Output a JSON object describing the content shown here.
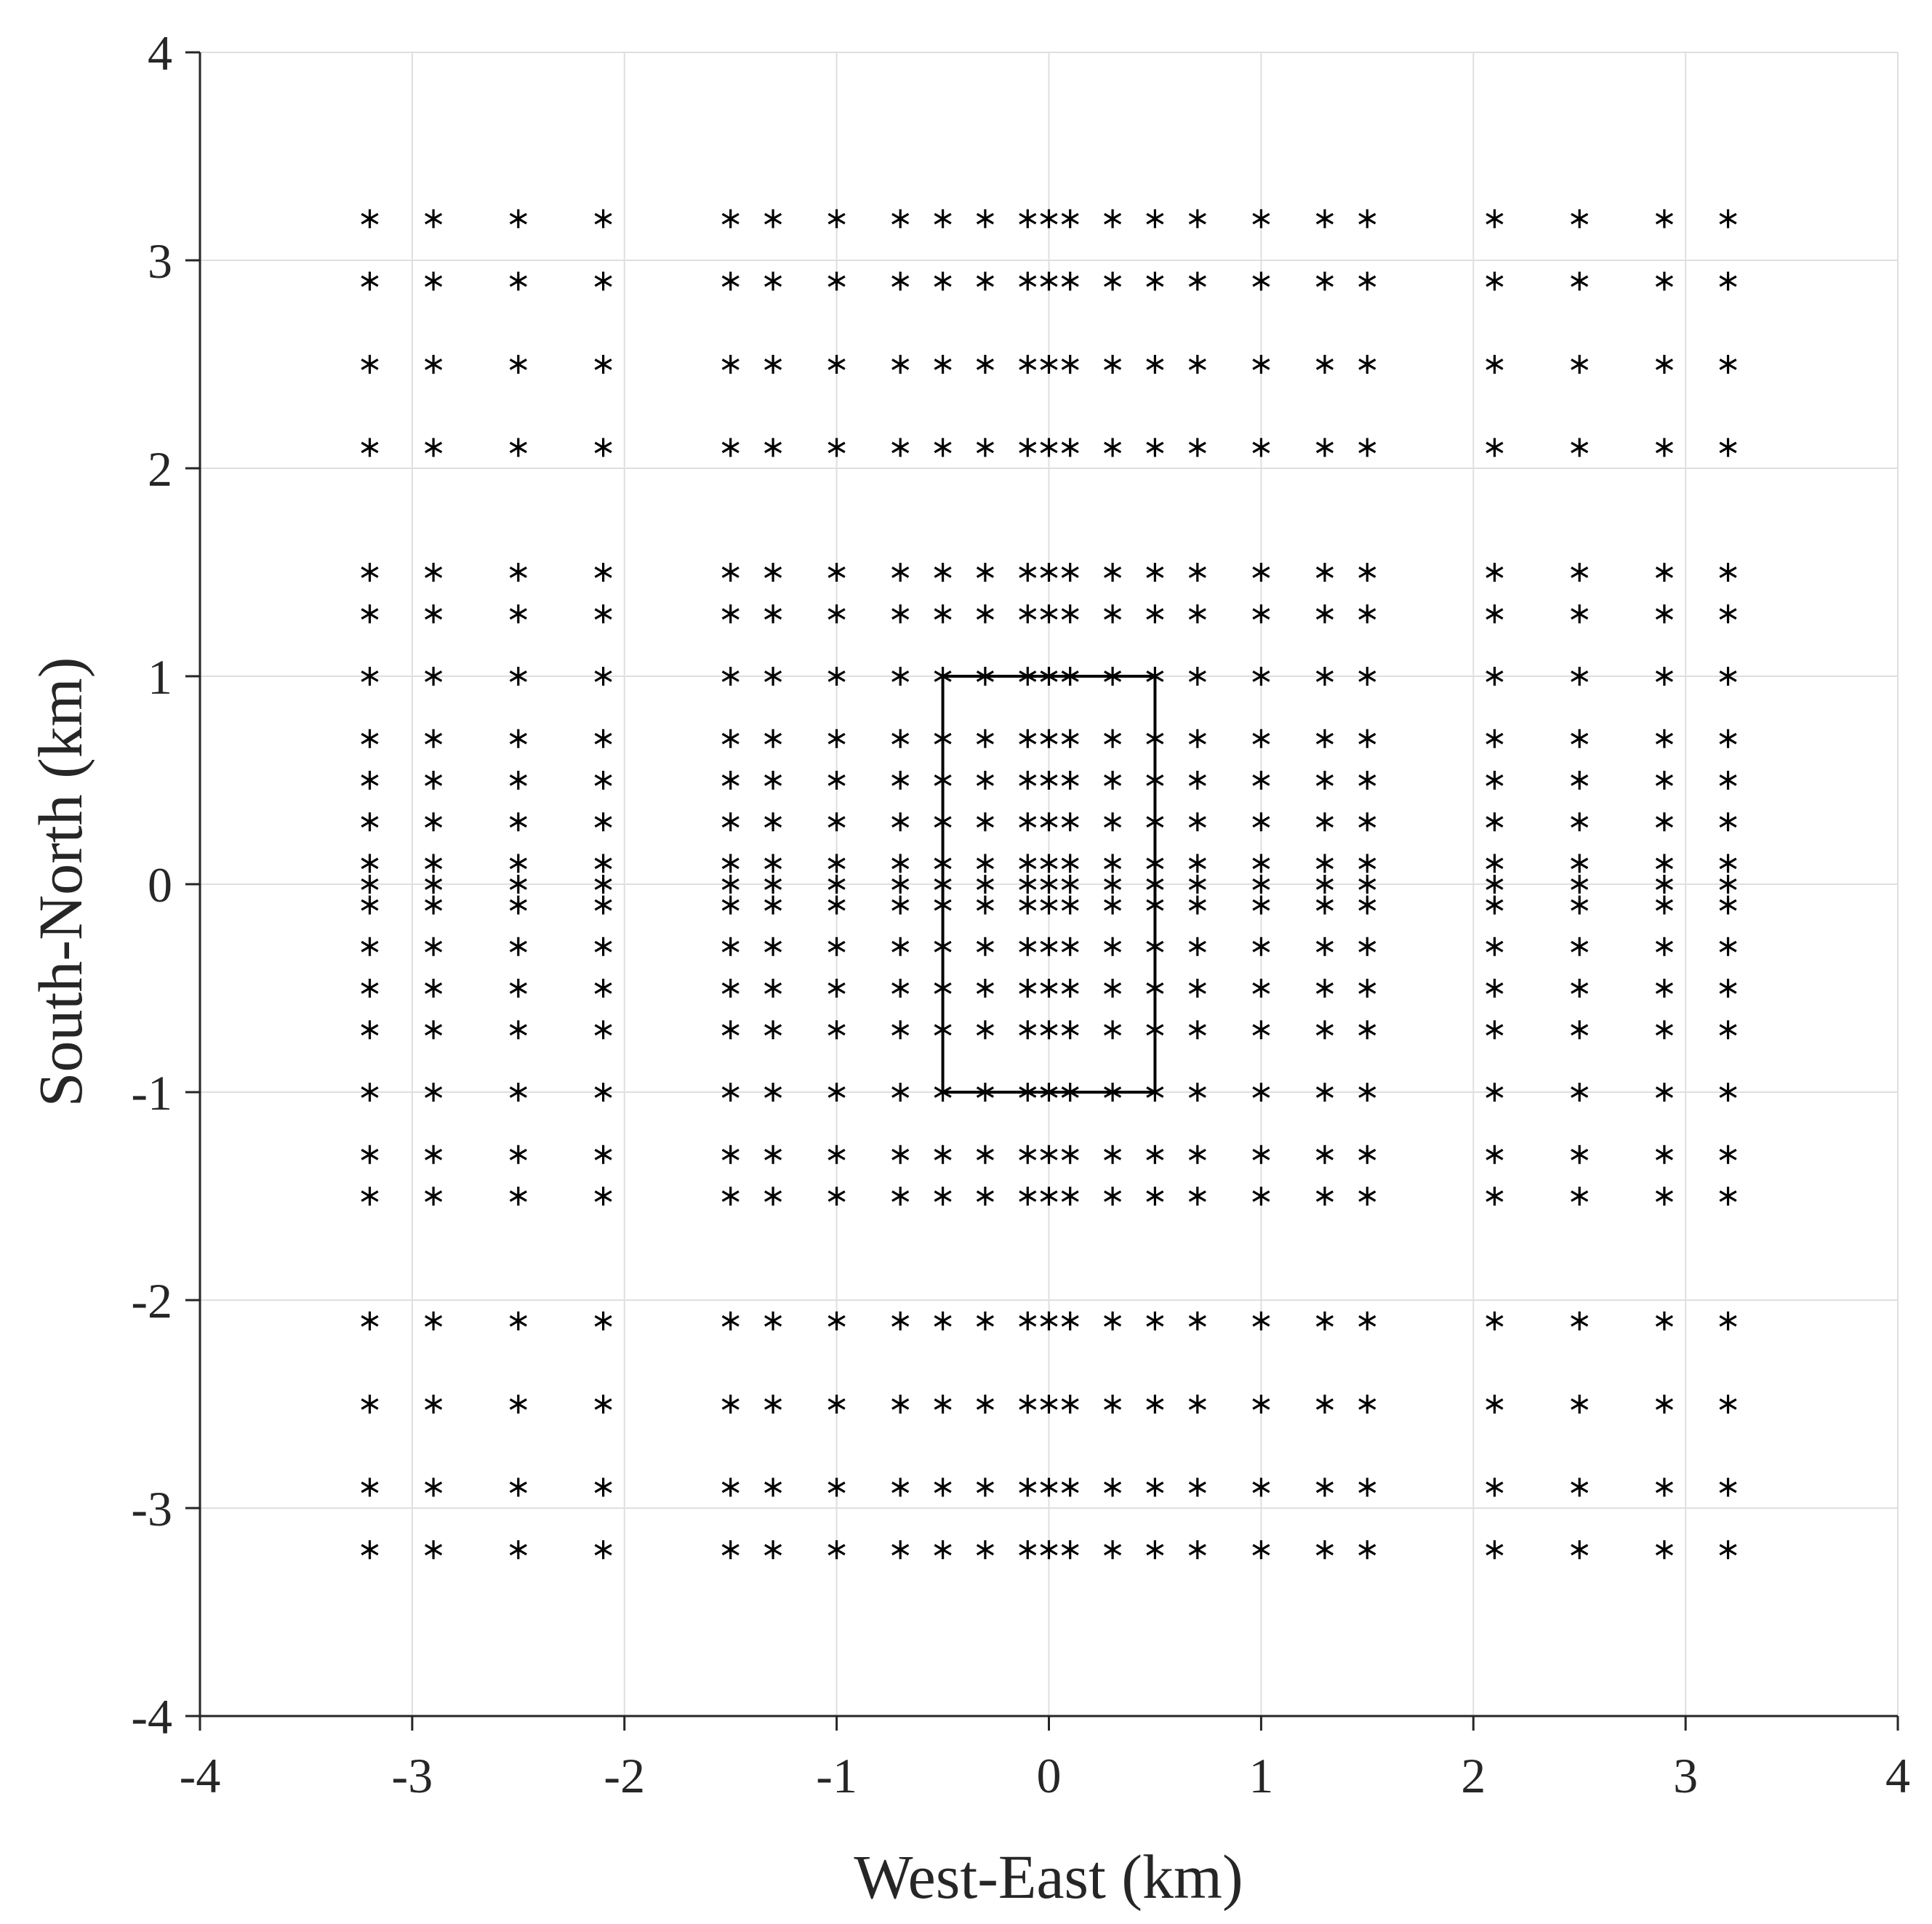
{
  "chart_data": {
    "type": "scatter",
    "title": "",
    "xlabel": "West-East (km)",
    "ylabel": "South-North (km)",
    "xlim": [
      -4,
      4
    ],
    "ylim": [
      -4,
      4
    ],
    "xticks": [
      -4,
      -3,
      -2,
      -1,
      0,
      1,
      2,
      3,
      4
    ],
    "yticks": [
      -4,
      -3,
      -2,
      -1,
      0,
      1,
      2,
      3,
      4
    ],
    "xtick_labels": [
      "-4",
      "-3",
      "-2",
      "-1",
      "0",
      "1",
      "2",
      "3",
      "4"
    ],
    "ytick_labels": [
      "-4",
      "-3",
      "-2",
      "-1",
      "0",
      "1",
      "2",
      "3",
      "4"
    ],
    "grid": true,
    "marker": "asterisk",
    "marker_color": "#000000",
    "grid_x_values": [
      -3.2,
      -2.9,
      -2.5,
      -2.1,
      -1.5,
      -1.3,
      -1.0,
      -0.7,
      -0.5,
      -0.3,
      -0.1,
      0.0,
      0.1,
      0.3,
      0.5,
      0.7,
      1.0,
      1.3,
      1.5,
      2.1,
      2.5,
      2.9,
      3.2
    ],
    "grid_y_values": [
      -3.2,
      -2.9,
      -2.5,
      -2.1,
      -1.5,
      -1.3,
      -1.0,
      -0.7,
      -0.5,
      -0.3,
      -0.1,
      0.0,
      0.1,
      0.3,
      0.5,
      0.7,
      1.0,
      1.3,
      1.5,
      2.1,
      2.5,
      2.9,
      3.2
    ],
    "region": {
      "x": [
        -0.5,
        0.5
      ],
      "y": [
        -1.0,
        1.0
      ],
      "color": "#000000"
    }
  }
}
